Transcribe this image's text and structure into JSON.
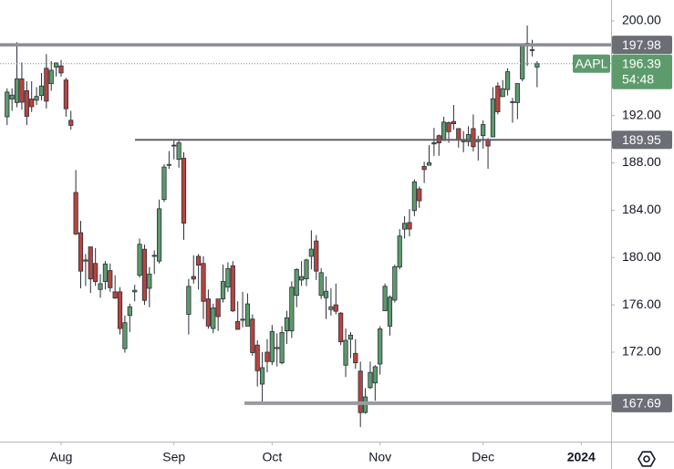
{
  "chart_data": {
    "type": "candlestick",
    "symbol": "AAPL",
    "countdown": "54:48",
    "last_price": 196.39,
    "up_color": "#5d9b6c",
    "down_color": "#b8443d",
    "price_color": "#5d9b6c",
    "levels": [
      197.98,
      189.95,
      167.69
    ],
    "x": [
      -11,
      -10,
      -9,
      -8,
      -7,
      -6,
      -5,
      -4,
      -3,
      -2,
      -1,
      0,
      1,
      2,
      3,
      4,
      5,
      6,
      7,
      8,
      9,
      10,
      11,
      12,
      13,
      14,
      15,
      16,
      17,
      18,
      19,
      20,
      21,
      22,
      23,
      24,
      25,
      26,
      27,
      28,
      29,
      30,
      31,
      32,
      33,
      34,
      35,
      36,
      37,
      38,
      39,
      40,
      41,
      42,
      43,
      44,
      45,
      46,
      47,
      48,
      49,
      50,
      51,
      52,
      53,
      54,
      55,
      56,
      57,
      58,
      59,
      60,
      61,
      62,
      63,
      64,
      65,
      66,
      67,
      68,
      69,
      70,
      71,
      72,
      73,
      74,
      75,
      76,
      77,
      78,
      79,
      80,
      81,
      82,
      83,
      84,
      85,
      86,
      87,
      88,
      89,
      90,
      91,
      92,
      93,
      94,
      95,
      96,
      97
    ],
    "ohlc": [
      [
        191.9,
        194.3,
        191.2,
        193.99
      ],
      [
        193.4,
        194.3,
        192.4,
        193.73
      ],
      [
        193.1,
        198.2,
        192.7,
        195.1
      ],
      [
        195.1,
        196.5,
        192.5,
        193.13
      ],
      [
        194.1,
        194.9,
        191.2,
        191.94
      ],
      [
        193.4,
        194.9,
        192.3,
        192.75
      ],
      [
        193.3,
        194.4,
        192.9,
        193.62
      ],
      [
        193.7,
        195.6,
        193.3,
        194.5
      ],
      [
        196.0,
        197.2,
        192.6,
        193.22
      ],
      [
        194.7,
        196.6,
        194.1,
        195.83
      ],
      [
        196.1,
        196.5,
        195.3,
        196.45
      ],
      [
        196.2,
        196.7,
        195.3,
        195.61
      ],
      [
        195.0,
        195.2,
        191.9,
        192.58
      ],
      [
        191.6,
        192.4,
        190.8,
        191.17
      ],
      [
        185.5,
        187.4,
        181.9,
        181.99
      ],
      [
        182.1,
        183.1,
        177.4,
        178.85
      ],
      [
        179.7,
        180.3,
        177.6,
        179.8
      ],
      [
        180.9,
        180.9,
        177.0,
        178.19
      ],
      [
        179.5,
        180.8,
        177.6,
        177.97
      ],
      [
        177.3,
        178.6,
        176.6,
        177.79
      ],
      [
        177.97,
        179.7,
        177.3,
        179.46
      ],
      [
        178.9,
        179.5,
        177.1,
        177.45
      ],
      [
        177.1,
        178.5,
        176.5,
        176.57
      ],
      [
        177.1,
        177.5,
        173.5,
        174.0
      ],
      [
        172.3,
        175.1,
        171.96,
        174.49
      ],
      [
        175.1,
        176.1,
        173.7,
        175.84
      ],
      [
        177.1,
        177.7,
        176.3,
        177.23
      ],
      [
        178.5,
        181.6,
        178.3,
        181.12
      ],
      [
        180.7,
        181.1,
        176.0,
        176.38
      ],
      [
        177.4,
        179.2,
        175.8,
        178.61
      ],
      [
        180.1,
        180.6,
        178.6,
        180.19
      ],
      [
        179.7,
        184.9,
        179.5,
        184.12
      ],
      [
        184.9,
        187.9,
        184.7,
        187.65
      ],
      [
        187.8,
        189.0,
        187.5,
        187.87
      ],
      [
        189.5,
        189.9,
        188.3,
        189.46
      ],
      [
        188.3,
        189.98,
        187.6,
        189.7
      ],
      [
        188.4,
        188.9,
        181.5,
        182.91
      ],
      [
        175.2,
        178.2,
        173.5,
        177.56
      ],
      [
        178.4,
        180.2,
        177.8,
        178.18
      ],
      [
        180.1,
        180.3,
        177.3,
        179.36
      ],
      [
        179.5,
        180.1,
        174.8,
        176.3
      ],
      [
        176.5,
        177.3,
        173.98,
        174.21
      ],
      [
        174.0,
        176.1,
        173.6,
        175.74
      ],
      [
        176.5,
        176.5,
        173.8,
        175.01
      ],
      [
        176.5,
        179.4,
        176.2,
        177.97
      ],
      [
        177.5,
        179.6,
        177.1,
        179.07
      ],
      [
        179.3,
        179.7,
        175.4,
        175.49
      ],
      [
        174.6,
        176.3,
        173.9,
        173.93
      ],
      [
        174.7,
        177.1,
        174.1,
        174.79
      ],
      [
        174.2,
        176.97,
        174.2,
        176.08
      ],
      [
        174.8,
        175.2,
        171.7,
        171.96
      ],
      [
        172.6,
        173.0,
        169.1,
        170.43
      ],
      [
        169.3,
        172.0,
        167.6,
        170.69
      ],
      [
        172.0,
        173.1,
        170.3,
        171.21
      ],
      [
        171.2,
        174.3,
        170.9,
        173.75
      ],
      [
        172.3,
        173.6,
        170.8,
        172.4
      ],
      [
        171.1,
        174.2,
        170.97,
        173.66
      ],
      [
        173.8,
        175.5,
        172.7,
        174.91
      ],
      [
        173.8,
        177.99,
        173.2,
        177.49
      ],
      [
        176.8,
        179.1,
        175.8,
        178.99
      ],
      [
        178.1,
        179.7,
        177.6,
        178.39
      ],
      [
        178.2,
        179.9,
        177.6,
        179.8
      ],
      [
        180.1,
        182.3,
        179.0,
        180.71
      ],
      [
        181.4,
        181.9,
        178.1,
        178.85
      ],
      [
        176.8,
        179.1,
        176.5,
        178.72
      ],
      [
        176.6,
        178.4,
        174.8,
        177.15
      ],
      [
        175.6,
        177.4,
        175.1,
        175.84
      ],
      [
        176.0,
        177.8,
        175.2,
        175.46
      ],
      [
        175.3,
        175.4,
        172.6,
        172.88
      ],
      [
        170.9,
        174.0,
        169.9,
        173.0
      ],
      [
        173.1,
        173.7,
        171.5,
        173.44
      ],
      [
        171.9,
        173.1,
        170.6,
        171.1
      ],
      [
        170.4,
        171.2,
        165.67,
        166.89
      ],
      [
        166.9,
        168.96,
        166.8,
        168.22
      ],
      [
        169.0,
        171.2,
        168.9,
        170.29
      ],
      [
        169.4,
        170.9,
        167.9,
        170.77
      ],
      [
        171.0,
        174.2,
        170.1,
        173.97
      ],
      [
        175.5,
        177.8,
        175.5,
        177.57
      ],
      [
        174.2,
        176.8,
        173.4,
        176.65
      ],
      [
        176.4,
        179.4,
        176.2,
        179.23
      ],
      [
        179.2,
        182.4,
        179.0,
        181.82
      ],
      [
        182.4,
        183.5,
        181.6,
        182.89
      ],
      [
        182.96,
        184.1,
        181.8,
        182.41
      ],
      [
        183.97,
        186.6,
        183.5,
        186.4
      ],
      [
        185.8,
        186.0,
        184.2,
        184.8
      ],
      [
        187.7,
        188.1,
        186.3,
        187.44
      ],
      [
        187.8,
        189.5,
        187.8,
        188.01
      ],
      [
        189.6,
        190.96,
        188.6,
        189.71
      ],
      [
        190.3,
        190.4,
        188.6,
        189.69
      ],
      [
        189.9,
        191.9,
        189.9,
        191.45
      ],
      [
        191.4,
        191.5,
        189.7,
        190.64
      ],
      [
        191.5,
        192.9,
        190.8,
        191.31
      ],
      [
        190.9,
        190.9,
        189.3,
        189.97
      ],
      [
        189.9,
        190.7,
        188.9,
        189.79
      ],
      [
        189.8,
        191.1,
        189.4,
        190.4
      ],
      [
        190.9,
        192.1,
        188.97,
        189.37
      ],
      [
        189.8,
        190.3,
        188.2,
        189.95
      ],
      [
        190.3,
        191.6,
        189.2,
        191.24
      ],
      [
        189.98,
        190.1,
        187.5,
        189.43
      ],
      [
        190.2,
        194.4,
        190.2,
        193.42
      ],
      [
        194.5,
        194.8,
        192.1,
        192.32
      ],
      [
        193.6,
        195.0,
        193.6,
        194.27
      ],
      [
        194.2,
        195.99,
        193.7,
        195.71
      ],
      [
        193.1,
        193.5,
        191.4,
        193.18
      ],
      [
        193.1,
        194.7,
        191.7,
        194.71
      ],
      [
        195.1,
        198.0,
        194.9,
        197.96
      ],
      [
        198.0,
        199.62,
        196.2,
        198.11
      ],
      [
        197.5,
        198.4,
        197.0,
        197.57
      ],
      [
        196.1,
        196.6,
        194.4,
        196.39
      ]
    ],
    "xlim": [
      -12.45,
      112.08
    ],
    "xticks": [
      {
        "value": 0,
        "label": "Aug"
      },
      {
        "value": 23,
        "label": "Sep"
      },
      {
        "value": 43,
        "label": "Oct"
      },
      {
        "value": 65,
        "label": "Nov"
      },
      {
        "value": 86,
        "label": "Dec"
      },
      {
        "value": 106,
        "label": "2024"
      }
    ],
    "ylim": [
      164.44,
      201.77
    ],
    "yticks": [
      {
        "value": 172,
        "label": "172.00"
      },
      {
        "value": 176,
        "label": "176.00"
      },
      {
        "value": 180,
        "label": "180.00"
      },
      {
        "value": 184,
        "label": "184.00"
      },
      {
        "value": 188,
        "label": "188.00"
      },
      {
        "value": 192,
        "label": "192.00"
      },
      {
        "value": 200,
        "label": "200.00"
      }
    ]
  }
}
